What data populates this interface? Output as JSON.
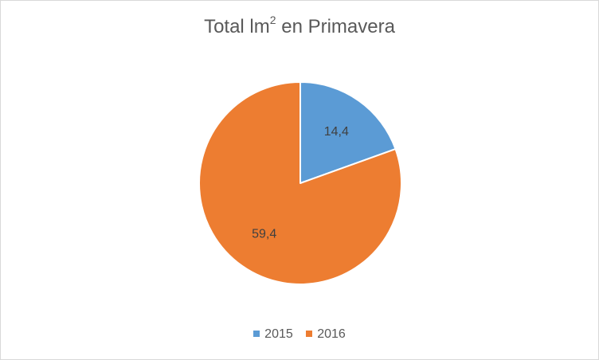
{
  "chart_data": {
    "type": "pie",
    "title_main": "Total lm",
    "title_sup": "2",
    "title_rest": " en Primavera",
    "categories": [
      "2015",
      "2016"
    ],
    "values": [
      14.4,
      59.4
    ],
    "value_labels": [
      "14,4",
      "59,4"
    ],
    "colors": [
      "#5b9bd5",
      "#ed7d31"
    ],
    "start_angle": "12 o'clock, clockwise",
    "legend_position": "bottom"
  }
}
